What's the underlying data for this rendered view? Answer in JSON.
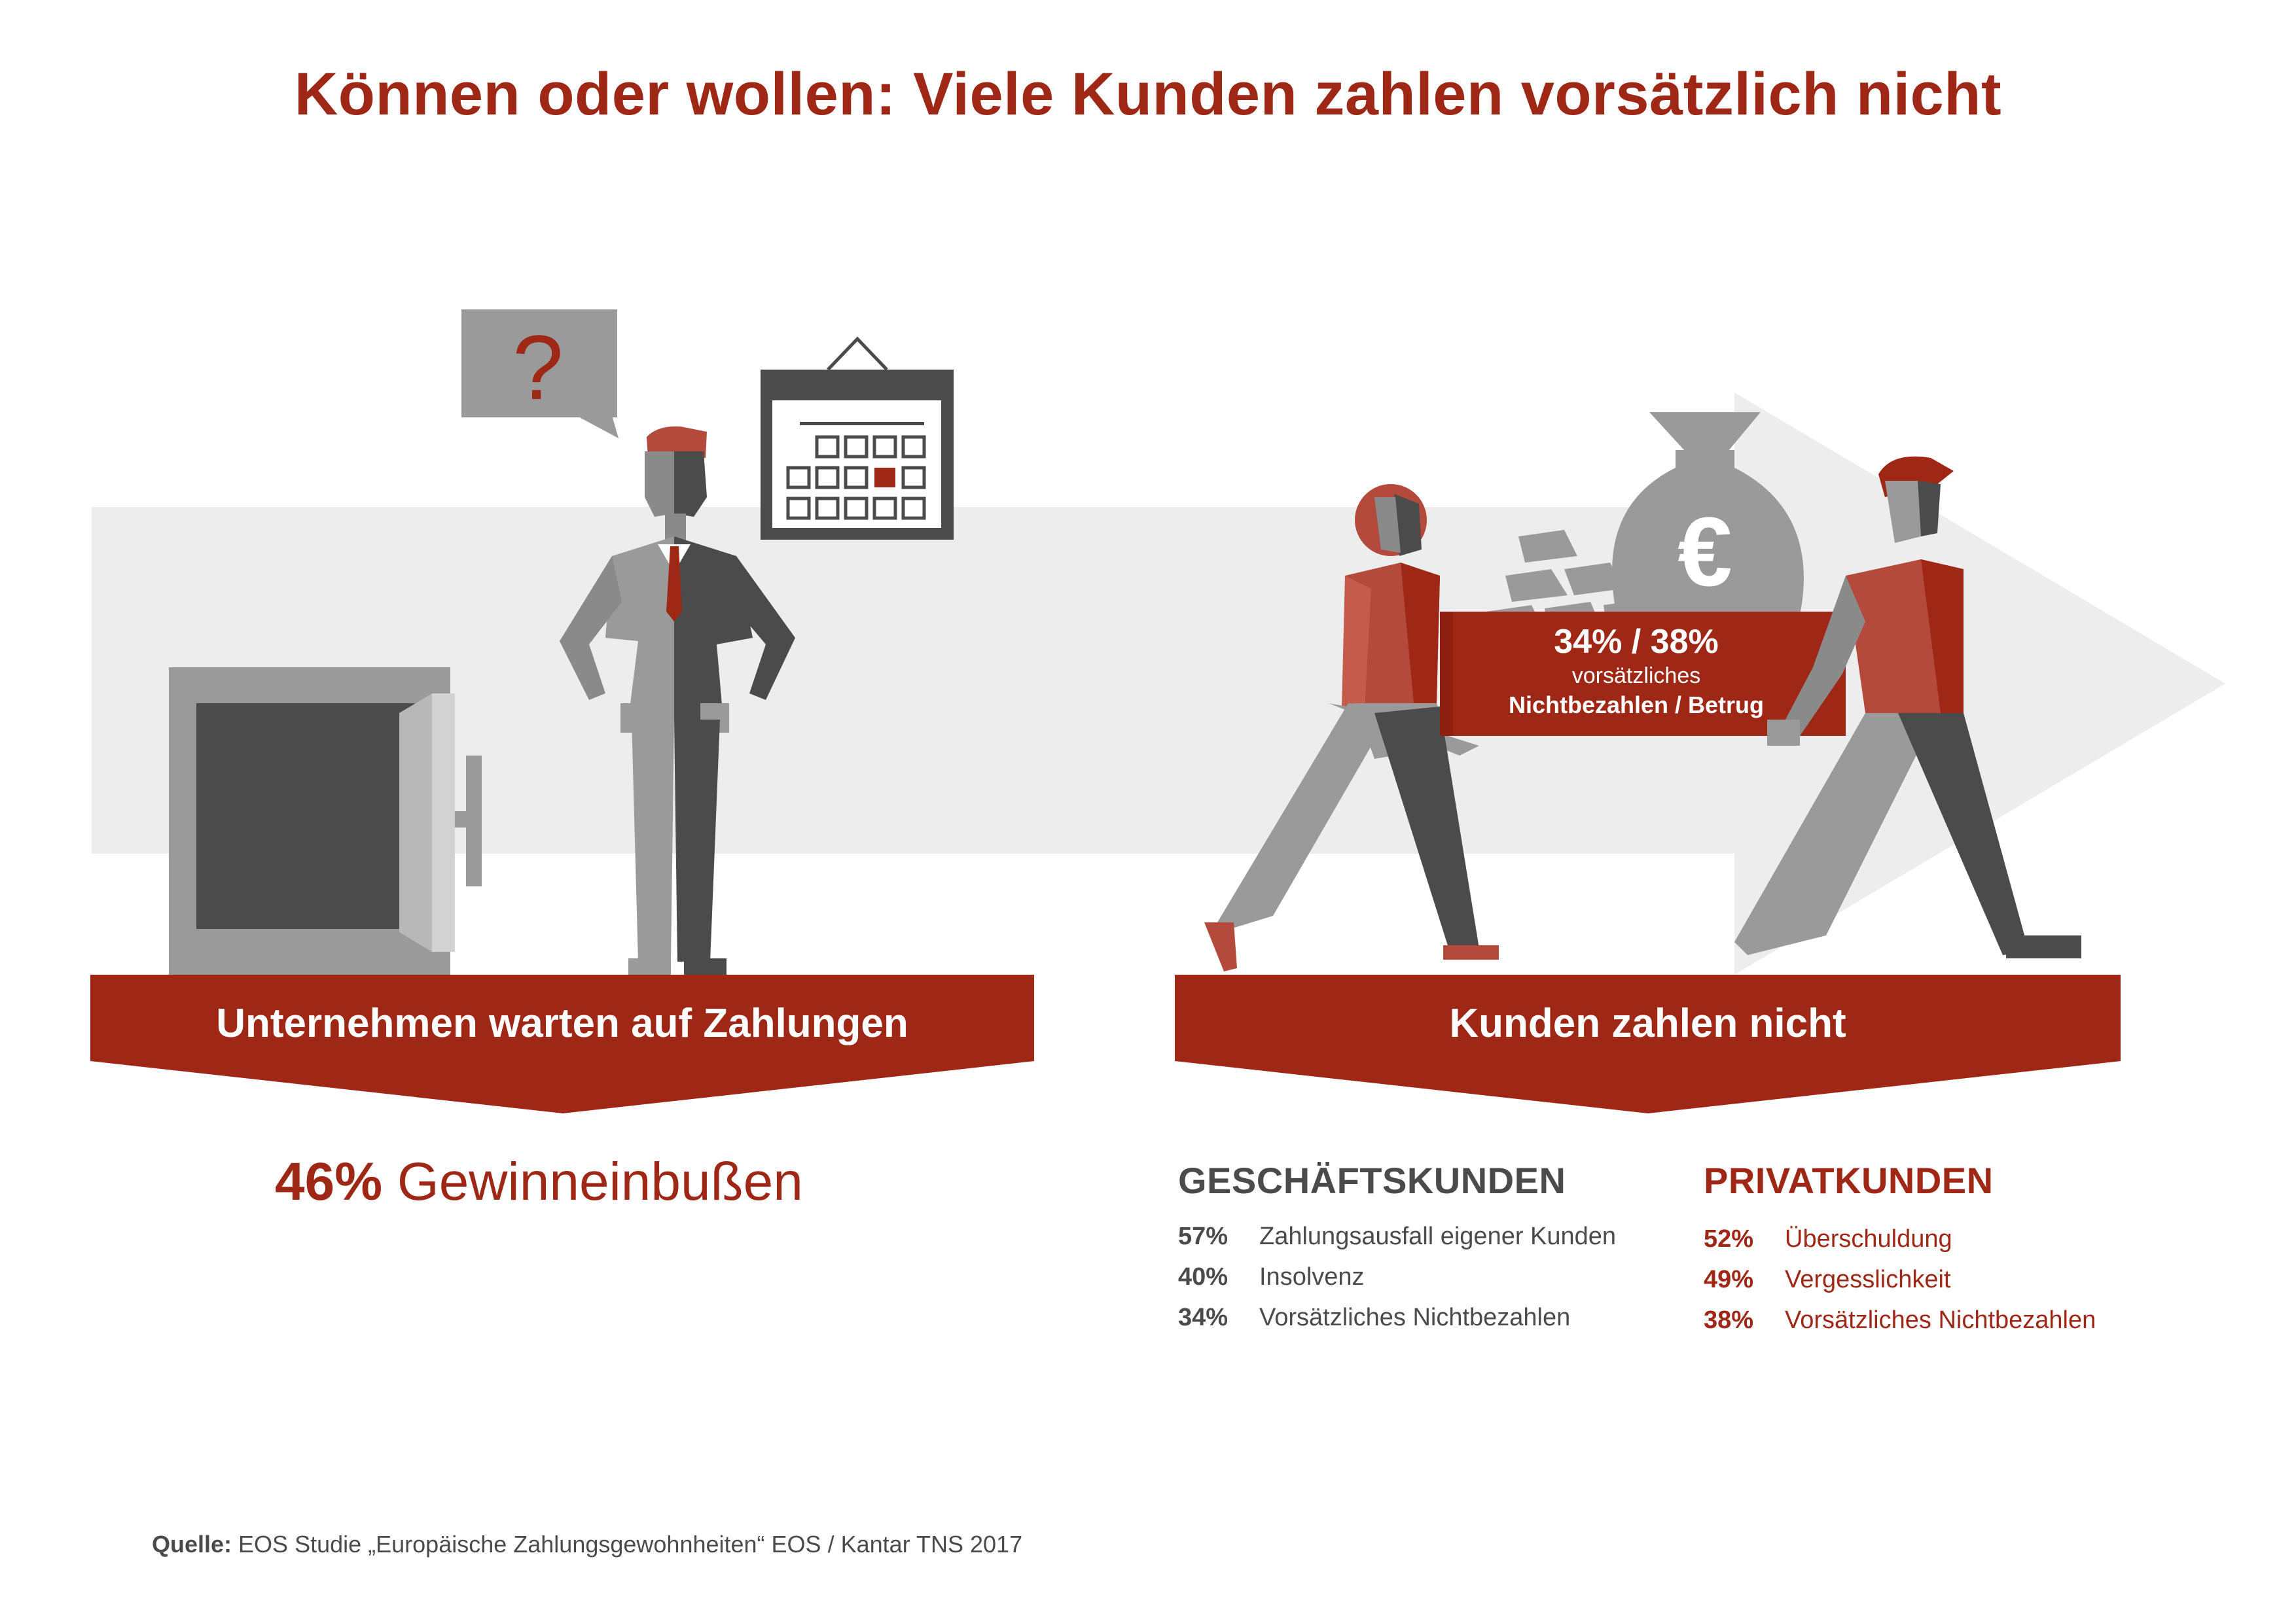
{
  "title": "Können oder wollen: Viele Kunden zahlen vorsätzlich nicht",
  "speech_bubble": {
    "symbol": "?"
  },
  "left_banner": {
    "label": "Unternehmen warten auf Zahlungen"
  },
  "right_banner": {
    "label": "Kunden zahlen nicht"
  },
  "bag_stat": {
    "percent": "34% / 38%",
    "label_line1": "vorsätzliches",
    "label_line2": "Nichtbezahlen / Betrug"
  },
  "money_bag": {
    "symbol": "€"
  },
  "loss": {
    "percent": "46%",
    "label": "Gewinneinbußen"
  },
  "business_customers": {
    "heading": "GESCHÄFTSKUNDEN",
    "items": [
      {
        "percent": "57%",
        "label": "Zahlungsausfall eigener Kunden"
      },
      {
        "percent": "40%",
        "label": "Insolvenz"
      },
      {
        "percent": "34%",
        "label": "Vorsätzliches Nichtbezahlen"
      }
    ]
  },
  "private_customers": {
    "heading": "PRIVATKUNDEN",
    "items": [
      {
        "percent": "52%",
        "label": "Überschuldung"
      },
      {
        "percent": "49%",
        "label": "Vergesslichkeit"
      },
      {
        "percent": "38%",
        "label": "Vorsätzliches Nichtbezahlen"
      }
    ]
  },
  "source": {
    "label": "Quelle:",
    "text": "EOS Studie „Europäische Zahlungsgewohnheiten“ EOS / Kantar TNS 2017"
  },
  "colors": {
    "accent": "#9f2716",
    "accent_light": "#b34a3c",
    "dark_gray": "#4b4b4b",
    "mid_gray": "#9a9a9a",
    "light_gray": "#ededed"
  }
}
